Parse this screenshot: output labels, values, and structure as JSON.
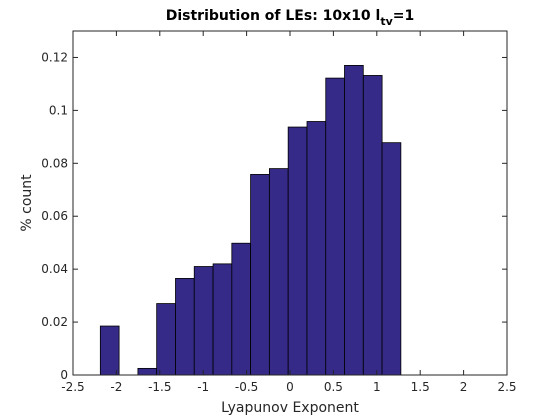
{
  "chart_data": {
    "type": "bar",
    "title": {
      "prefix": "Distribution of LEs: 10x10 l",
      "subscript": "tv",
      "suffix": "=1"
    },
    "xlabel": "Lyapunov Exponent",
    "ylabel": "% count",
    "xlim": [
      -2.5,
      2.5
    ],
    "ylim": [
      0,
      0.13
    ],
    "xticks": [
      -2.5,
      -2,
      -1.5,
      -1,
      -0.5,
      0,
      0.5,
      1,
      1.5,
      2,
      2.5
    ],
    "xtick_labels": [
      "-2.5",
      "-2",
      "-1.5",
      "-1",
      "-0.5",
      "0",
      "0.5",
      "1",
      "1.5",
      "2",
      "2.5"
    ],
    "yticks": [
      0,
      0.02,
      0.04,
      0.06,
      0.08,
      0.1,
      0.12
    ],
    "ytick_labels": [
      "0",
      "0.02",
      "0.04",
      "0.06",
      "0.08",
      "0.1",
      "0.12"
    ],
    "bin_width": 0.2164,
    "bin_centers": [
      -2.077,
      -1.644,
      -1.428,
      -1.211,
      -0.995,
      -0.778,
      -0.562,
      -0.346,
      -0.129,
      0.087,
      0.304,
      0.52,
      0.736,
      0.953,
      1.169
    ],
    "values": [
      0.0185,
      0.0025,
      0.027,
      0.0365,
      0.041,
      0.042,
      0.0498,
      0.0758,
      0.078,
      0.0937,
      0.0958,
      0.1122,
      0.117,
      0.1132,
      0.0878
    ],
    "bar_color": "#352a87",
    "edge_color": "#000000",
    "grid": false
  }
}
